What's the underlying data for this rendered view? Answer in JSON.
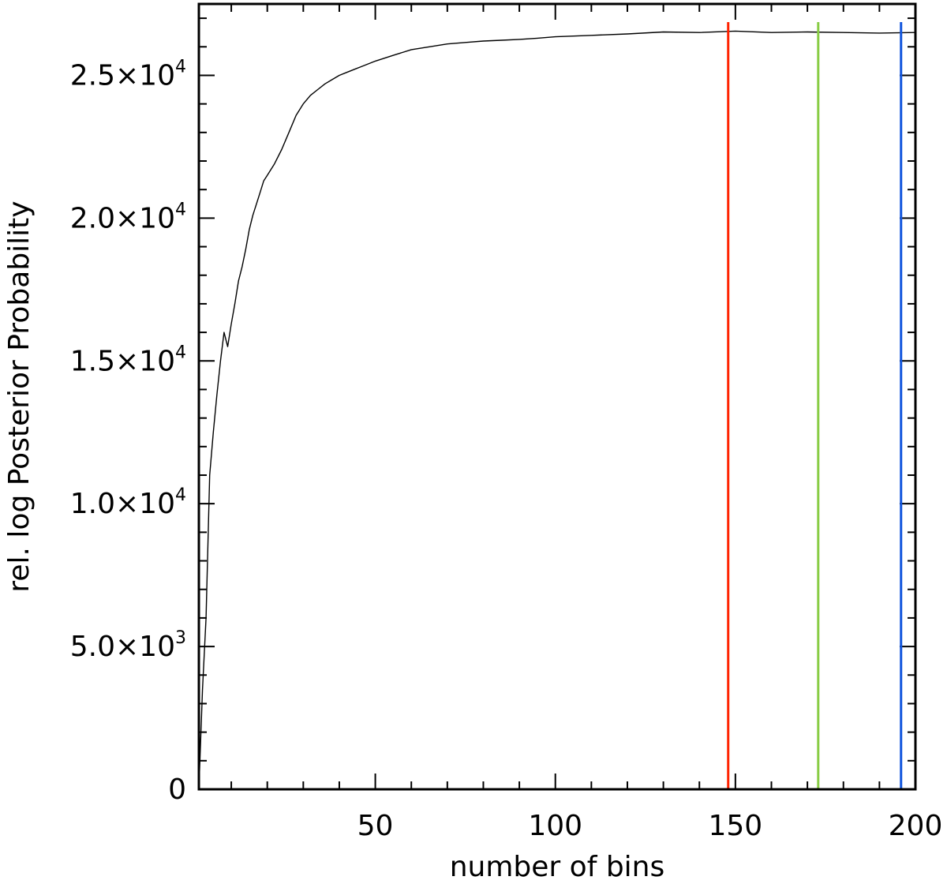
{
  "chart_data": {
    "type": "line",
    "title": "",
    "xlabel": "number of bins",
    "ylabel": "rel. log Posterior Probability",
    "xlim": [
      1,
      200
    ],
    "ylim": [
      0,
      27500
    ],
    "grid": false,
    "x_ticks": [
      {
        "value": 50,
        "label": "50"
      },
      {
        "value": 100,
        "label": "100"
      },
      {
        "value": 150,
        "label": "150"
      },
      {
        "value": 200,
        "label": "200"
      }
    ],
    "x_minor_step": 10,
    "y_ticks": [
      {
        "value": 0,
        "mantissa": "0",
        "exponent": ""
      },
      {
        "value": 5000,
        "mantissa": "5.0×10",
        "exponent": "3"
      },
      {
        "value": 10000,
        "mantissa": "1.0×10",
        "exponent": "4"
      },
      {
        "value": 15000,
        "mantissa": "1.5×10",
        "exponent": "4"
      },
      {
        "value": 20000,
        "mantissa": "2.0×10",
        "exponent": "4"
      },
      {
        "value": 25000,
        "mantissa": "2.5×10",
        "exponent": "4"
      }
    ],
    "y_minor_step": 1000,
    "series": [
      {
        "color": "#000000",
        "x": [
          1,
          2,
          3,
          4,
          5,
          6,
          7,
          8,
          9,
          10,
          11,
          12,
          13,
          14,
          15,
          16,
          17,
          18,
          19,
          20,
          22,
          24,
          26,
          28,
          30,
          32,
          34,
          36,
          38,
          40,
          42,
          44,
          46,
          48,
          50,
          55,
          60,
          65,
          70,
          75,
          80,
          85,
          90,
          95,
          100,
          110,
          120,
          130,
          140,
          150,
          160,
          170,
          180,
          190,
          200
        ],
        "y": [
          0,
          3500,
          6000,
          11000,
          12500,
          13800,
          15000,
          16000,
          15500,
          16300,
          17000,
          17800,
          18300,
          18900,
          19600,
          20100,
          20500,
          20900,
          21300,
          21500,
          21900,
          22400,
          23000,
          23600,
          24000,
          24300,
          24500,
          24700,
          24850,
          25000,
          25100,
          25200,
          25300,
          25400,
          25500,
          25700,
          25900,
          26000,
          26100,
          26150,
          26200,
          26230,
          26260,
          26300,
          26350,
          26400,
          26450,
          26520,
          26500,
          26550,
          26500,
          26520,
          26500,
          26480,
          26500
        ]
      }
    ],
    "vertical_lines": [
      {
        "x": 148,
        "color": "#ff2200"
      },
      {
        "x": 173,
        "color": "#88cc44"
      },
      {
        "x": 196,
        "color": "#1155dd"
      }
    ]
  }
}
